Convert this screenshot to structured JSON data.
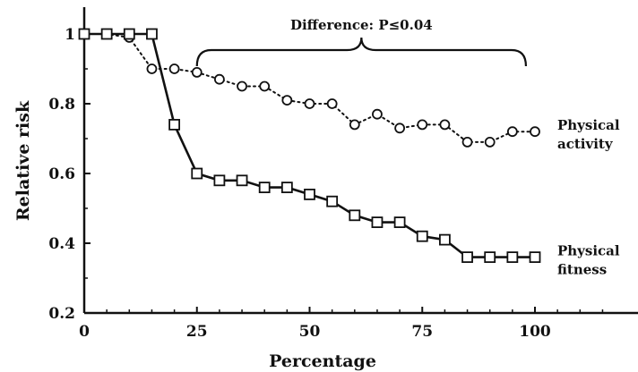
{
  "chart_data": {
    "type": "line",
    "xlabel": "Percentage",
    "ylabel": "Relative risk",
    "xlim": [
      0,
      120
    ],
    "ylim": [
      0.2,
      1.08
    ],
    "x_ticks": [
      "0",
      "25",
      "50",
      "75",
      "100"
    ],
    "x_tick_values": [
      0,
      25,
      50,
      75,
      100
    ],
    "y_ticks": [
      "0.2",
      "0.4",
      "0.6",
      "0.8",
      "1"
    ],
    "y_tick_values": [
      0.2,
      0.4,
      0.6,
      0.8,
      1.0
    ],
    "grid": false,
    "series": [
      {
        "name": "Physical activity",
        "label_lines": [
          "Physical",
          "activity"
        ],
        "marker": "circle",
        "line_style": "dotted",
        "x": [
          0,
          5,
          10,
          15,
          20,
          25,
          30,
          35,
          40,
          45,
          50,
          55,
          60,
          65,
          70,
          75,
          80,
          85,
          90,
          95,
          100
        ],
        "y": [
          1.0,
          1.0,
          0.99,
          0.9,
          0.9,
          0.89,
          0.87,
          0.85,
          0.85,
          0.81,
          0.8,
          0.8,
          0.74,
          0.77,
          0.73,
          0.74,
          0.74,
          0.69,
          0.69,
          0.72,
          0.72
        ]
      },
      {
        "name": "Physical fitness",
        "label_lines": [
          "Physical",
          "fitness"
        ],
        "marker": "square",
        "line_style": "solid",
        "x": [
          0,
          5,
          10,
          15,
          20,
          25,
          30,
          35,
          40,
          45,
          50,
          55,
          60,
          65,
          70,
          75,
          80,
          85,
          90,
          95,
          100
        ],
        "y": [
          1.0,
          1.0,
          1.0,
          1.0,
          0.74,
          0.6,
          0.58,
          0.58,
          0.56,
          0.56,
          0.54,
          0.52,
          0.48,
          0.46,
          0.46,
          0.42,
          0.41,
          0.36,
          0.36,
          0.36,
          0.36
        ]
      }
    ],
    "annotation": {
      "text": "Difference: P≤0.04",
      "x_from": 25,
      "x_to": 98
    }
  }
}
